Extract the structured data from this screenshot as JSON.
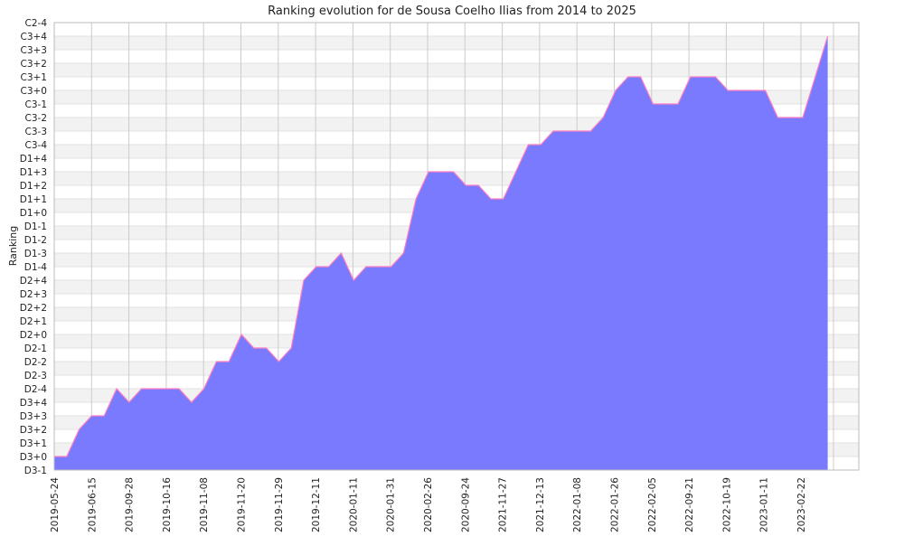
{
  "chart_data": {
    "type": "area",
    "title": "Ranking evolution for de Sousa Coelho Ilias from 2014 to 2025",
    "xlabel": "",
    "ylabel": "Ranking",
    "x_tick_labels": [
      "2019-05-24",
      "2019-06-15",
      "2019-09-28",
      "2019-10-16",
      "2019-11-08",
      "2019-11-20",
      "2019-11-29",
      "2019-12-11",
      "2020-01-11",
      "2020-01-31",
      "2020-02-26",
      "2020-09-24",
      "2021-11-27",
      "2021-12-13",
      "2022-01-08",
      "2022-01-26",
      "2022-02-05",
      "2022-09-21",
      "2022-10-19",
      "2023-01-11",
      "2023-02-22"
    ],
    "y_tick_labels": [
      "D3-1",
      "D3+0",
      "D3+1",
      "D3+2",
      "D3+3",
      "D3+4",
      "D2-4",
      "D2-3",
      "D2-2",
      "D2-1",
      "D2+0",
      "D2+1",
      "D2+2",
      "D2+3",
      "D2+4",
      "D1-4",
      "D1-3",
      "D1-2",
      "D1-1",
      "D1+0",
      "D1+1",
      "D1+2",
      "D1+3",
      "D1+4",
      "C3-4",
      "C3-3",
      "C3-2",
      "C3-1",
      "C3+0",
      "C3+1",
      "C3+2",
      "C3+3",
      "C3+4",
      "C2-4"
    ],
    "ylim": [
      "D3-1",
      "C2-4"
    ],
    "grid": true,
    "legend": "none",
    "colors": {
      "fill": "#7777ff",
      "line": "#ff7fbf",
      "band": "#f2f2f2",
      "grid": "#cccccc"
    },
    "series": [
      {
        "values": [
          "D3+0",
          "D3+0",
          "D3+2",
          "D3+3",
          "D3+3",
          "D2-4",
          "D3+4",
          "D2-4",
          "D2-4",
          "D2-4",
          "D2-4",
          "D3+4",
          "D2-4",
          "D2-2",
          "D2-2",
          "D2+0",
          "D2-1",
          "D2-1",
          "D2-2",
          "D2-1",
          "D2+4",
          "D1-4",
          "D1-4",
          "D1-3",
          "D2+4",
          "D1-4",
          "D1-4",
          "D1-4",
          "D1-3",
          "D1+1",
          "D1+3",
          "D1+3",
          "D1+3",
          "D1+2",
          "D1+2",
          "D1+1",
          "D1+1",
          "D1+3",
          "C3-4",
          "C3-4",
          "C3-3",
          "C3-3",
          "C3-3",
          "C3-3",
          "C3-2",
          "C3+0",
          "C3+1",
          "C3+1",
          "C3-1",
          "C3-1",
          "C3-1",
          "C3+1",
          "C3+1",
          "C3+1",
          "C3+0",
          "C3+0",
          "C3+0",
          "C3+0",
          "C3-2",
          "C3-2",
          "C3-2",
          "C3+1",
          "C3+4"
        ]
      }
    ]
  }
}
